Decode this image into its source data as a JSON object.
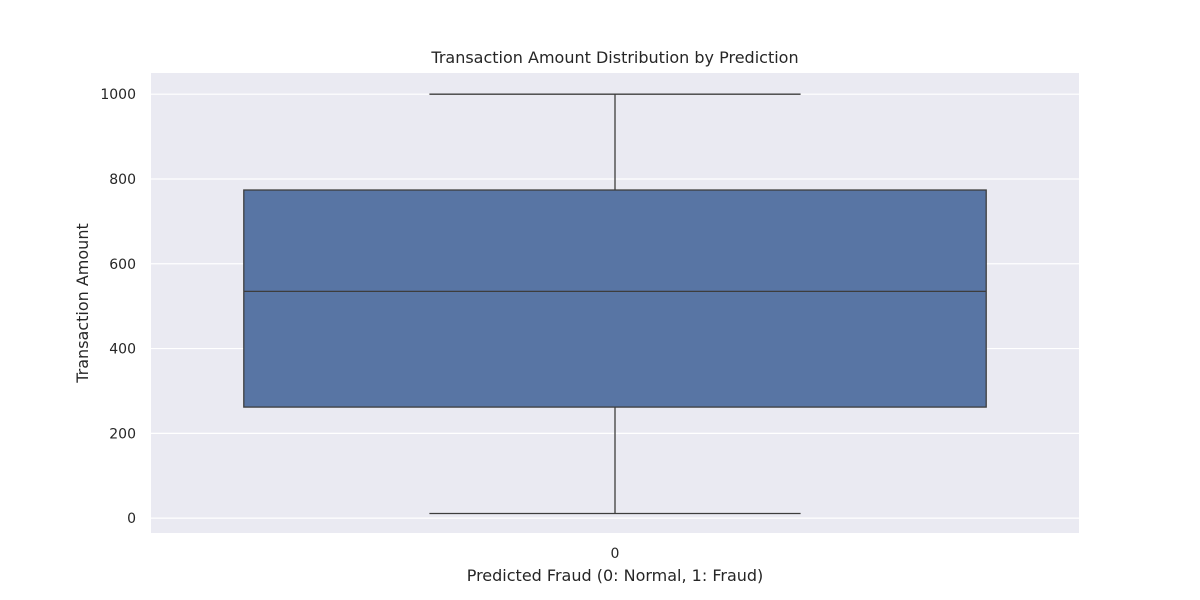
{
  "chart_data": {
    "type": "box",
    "title": "Transaction Amount Distribution by Prediction",
    "xlabel": "Predicted Fraud (0: Normal, 1: Fraud)",
    "ylabel": "Transaction Amount",
    "categories": [
      "0"
    ],
    "boxes": [
      {
        "category": "0",
        "whisker_low": 11,
        "q1": 262,
        "median": 535,
        "q3": 774,
        "whisker_high": 1000
      }
    ],
    "ylim": [
      -35,
      1050
    ],
    "yticks": [
      0,
      200,
      400,
      600,
      800,
      1000
    ],
    "grid": true,
    "style": {
      "background": "#eaeaf2",
      "grid_color": "#ffffff",
      "box_fill": "#5875a4",
      "line_color": "#3d3d3d"
    }
  }
}
